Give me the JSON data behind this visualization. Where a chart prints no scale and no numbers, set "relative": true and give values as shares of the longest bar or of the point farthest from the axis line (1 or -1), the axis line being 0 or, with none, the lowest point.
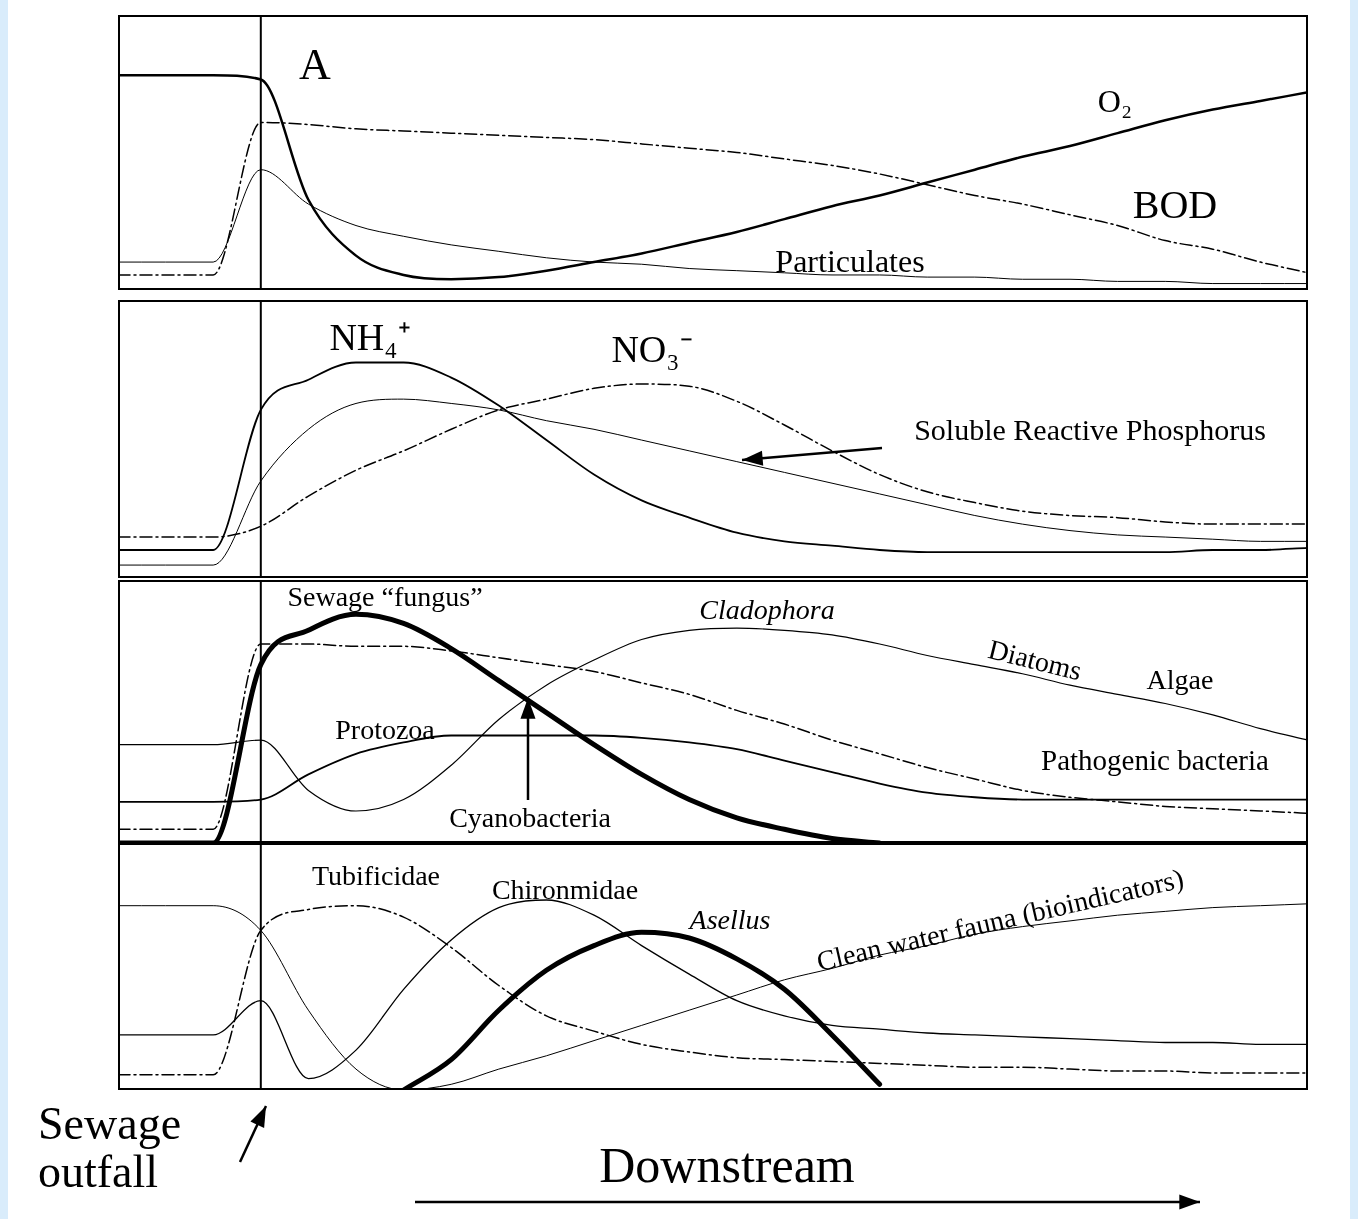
{
  "chart_data": [
    {
      "type": "line",
      "title": "A",
      "relative": true,
      "categories": [
        null,
        null,
        null,
        null,
        null,
        null,
        null,
        null,
        null,
        null,
        null,
        null,
        null,
        null,
        null,
        null,
        null,
        null,
        null,
        null,
        null,
        null,
        null,
        null,
        null,
        null
      ],
      "series": [
        {
          "name": "O₂",
          "color": "#000000",
          "line_style": "solid",
          "values": [
            1,
            1,
            1,
            0.98,
            0.42,
            0.16,
            0.07,
            0.05,
            0.06,
            0.09,
            0.13,
            0.17,
            0.22,
            0.27,
            0.33,
            0.39,
            0.44,
            0.5,
            0.56,
            0.62,
            0.67,
            0.73,
            0.79,
            0.84,
            0.88,
            0.92
          ]
        },
        {
          "name": "BOD",
          "color": "#000000",
          "line_style": "dashed",
          "values": [
            0.07,
            0.07,
            0.07,
            0.78,
            0.77,
            0.75,
            0.74,
            0.73,
            0.72,
            0.71,
            0.7,
            0.68,
            0.66,
            0.64,
            0.61,
            0.58,
            0.54,
            0.49,
            0.44,
            0.4,
            0.35,
            0.3,
            0.23,
            0.19,
            0.13,
            0.08
          ]
        },
        {
          "name": "Particulates",
          "color": "#000000",
          "line_style": "solid",
          "values": [
            0.13,
            0.13,
            0.13,
            0.56,
            0.4,
            0.3,
            0.25,
            0.21,
            0.18,
            0.15,
            0.13,
            0.12,
            0.1,
            0.09,
            0.08,
            0.07,
            0.07,
            0.06,
            0.06,
            0.05,
            0.05,
            0.04,
            0.04,
            0.03,
            0.03,
            0.03
          ]
        }
      ]
    },
    {
      "type": "line",
      "relative": true,
      "categories": [
        null,
        null,
        null,
        null,
        null,
        null,
        null,
        null,
        null,
        null,
        null,
        null,
        null,
        null,
        null,
        null,
        null,
        null,
        null,
        null,
        null,
        null,
        null,
        null,
        null,
        null
      ],
      "annotations": [
        "Soluble Reactive Phosphorus"
      ],
      "series": [
        {
          "name": "NH₄⁺",
          "color": "#000000",
          "line_style": "solid",
          "values": [
            0.13,
            0.13,
            0.13,
            0.78,
            0.92,
            1,
            1,
            0.93,
            0.8,
            0.64,
            0.48,
            0.36,
            0.28,
            0.21,
            0.17,
            0.15,
            0.13,
            0.12,
            0.12,
            0.12,
            0.12,
            0.12,
            0.12,
            0.13,
            0.13,
            0.14
          ]
        },
        {
          "name": "NO₃⁻",
          "color": "#000000",
          "line_style": "dashed",
          "values": [
            0.19,
            0.19,
            0.19,
            0.24,
            0.38,
            0.5,
            0.59,
            0.69,
            0.78,
            0.83,
            0.88,
            0.9,
            0.89,
            0.82,
            0.71,
            0.59,
            0.48,
            0.4,
            0.35,
            0.31,
            0.29,
            0.28,
            0.26,
            0.25,
            0.25,
            0.25
          ]
        },
        {
          "color": "#000000",
          "line_style": "solid",
          "values": [
            0.06,
            0.06,
            0.06,
            0.45,
            0.69,
            0.81,
            0.83,
            0.81,
            0.78,
            0.73,
            0.69,
            0.64,
            0.59,
            0.54,
            0.49,
            0.44,
            0.39,
            0.34,
            0.29,
            0.25,
            0.22,
            0.2,
            0.19,
            0.18,
            0.17,
            0.17
          ]
        }
      ]
    },
    {
      "type": "line",
      "relative": true,
      "categories": [
        null,
        null,
        null,
        null,
        null,
        null,
        null,
        null,
        null,
        null,
        null,
        null,
        null,
        null,
        null,
        null,
        null,
        null,
        null,
        null,
        null,
        null,
        null,
        null,
        null,
        null
      ],
      "annotations": [
        "Diatoms",
        "Algae",
        "Cyanobacteria"
      ],
      "series": [
        {
          "name": "Sewage “fungus”",
          "color": "#000000",
          "line_style": "solid",
          "values": [
            0,
            0,
            0,
            0.78,
            0.93,
            1,
            0.96,
            0.85,
            0.71,
            0.57,
            0.43,
            0.3,
            0.19,
            0.11,
            0.06,
            0.02,
            0,
            null,
            null,
            null,
            null,
            null,
            null,
            null,
            null,
            null
          ]
        },
        {
          "name": "Cladophora",
          "color": "#000000",
          "line_style": "solid",
          "values": [
            0.43,
            0.43,
            0.43,
            0.45,
            0.23,
            0.14,
            0.19,
            0.34,
            0.54,
            0.69,
            0.8,
            0.89,
            0.93,
            0.94,
            0.93,
            0.91,
            0.87,
            0.82,
            0.78,
            0.74,
            0.69,
            0.65,
            0.61,
            0.56,
            0.5,
            0.45
          ]
        },
        {
          "name": "Protozoa",
          "color": "#000000",
          "line_style": "solid",
          "values": [
            0.18,
            0.18,
            0.18,
            0.19,
            0.3,
            0.39,
            0.44,
            0.47,
            0.47,
            0.47,
            0.47,
            0.46,
            0.44,
            0.41,
            0.36,
            0.31,
            0.26,
            0.22,
            0.2,
            0.19,
            0.19,
            0.19,
            0.19,
            0.19,
            0.19,
            0.19
          ]
        },
        {
          "name": "Pathogenic bacteria",
          "color": "#000000",
          "line_style": "dashed",
          "values": [
            0.06,
            0.06,
            0.06,
            0.87,
            0.87,
            0.86,
            0.86,
            0.84,
            0.81,
            0.78,
            0.75,
            0.7,
            0.65,
            0.58,
            0.52,
            0.45,
            0.39,
            0.33,
            0.28,
            0.23,
            0.2,
            0.18,
            0.16,
            0.15,
            0.14,
            0.13
          ]
        }
      ]
    },
    {
      "type": "line",
      "relative": true,
      "xlabel": "Downstream",
      "categories": [
        null,
        null,
        null,
        null,
        null,
        null,
        null,
        null,
        null,
        null,
        null,
        null,
        null,
        null,
        null,
        null,
        null,
        null,
        null,
        null,
        null,
        null,
        null,
        null,
        null,
        null
      ],
      "annotations": [
        "Sewage outfall"
      ],
      "series": [
        {
          "name": "Tubificidae",
          "color": "#000000",
          "line_style": "dashed",
          "values": [
            0.08,
            0.08,
            0.08,
            0.84,
            0.95,
            0.97,
            0.91,
            0.75,
            0.55,
            0.39,
            0.31,
            0.24,
            0.2,
            0.17,
            0.16,
            0.15,
            0.14,
            0.13,
            0.12,
            0.12,
            0.11,
            0.1,
            0.1,
            0.09,
            0.09,
            0.09
          ]
        },
        {
          "name": "Chironmidae",
          "color": "#000000",
          "line_style": "solid",
          "values": [
            0.29,
            0.29,
            0.29,
            0.47,
            0.06,
            0.21,
            0.53,
            0.79,
            0.96,
            1,
            0.92,
            0.76,
            0.61,
            0.47,
            0.39,
            0.34,
            0.32,
            0.3,
            0.29,
            0.28,
            0.27,
            0.26,
            0.25,
            0.25,
            0.24,
            0.24
          ]
        },
        {
          "name": "Asellus",
          "color": "#000000",
          "line_style": "solid",
          "values": [
            null,
            null,
            null,
            null,
            null,
            null,
            0,
            0.16,
            0.42,
            0.63,
            0.76,
            0.83,
            0.8,
            0.69,
            0.53,
            0.29,
            0.03,
            null,
            null,
            null,
            null,
            null,
            null,
            null,
            null,
            null
          ]
        },
        {
          "name": "Clean water fauna (bioindicators)",
          "color": "#000000",
          "line_style": "solid",
          "values": [
            0.97,
            0.97,
            0.97,
            0.84,
            0.42,
            0.11,
            0,
            0.03,
            0.11,
            0.18,
            0.26,
            0.34,
            0.42,
            0.5,
            0.58,
            0.64,
            0.71,
            0.76,
            0.82,
            0.86,
            0.89,
            0.92,
            0.94,
            0.96,
            0.97,
            0.98
          ]
        }
      ]
    }
  ]
}
